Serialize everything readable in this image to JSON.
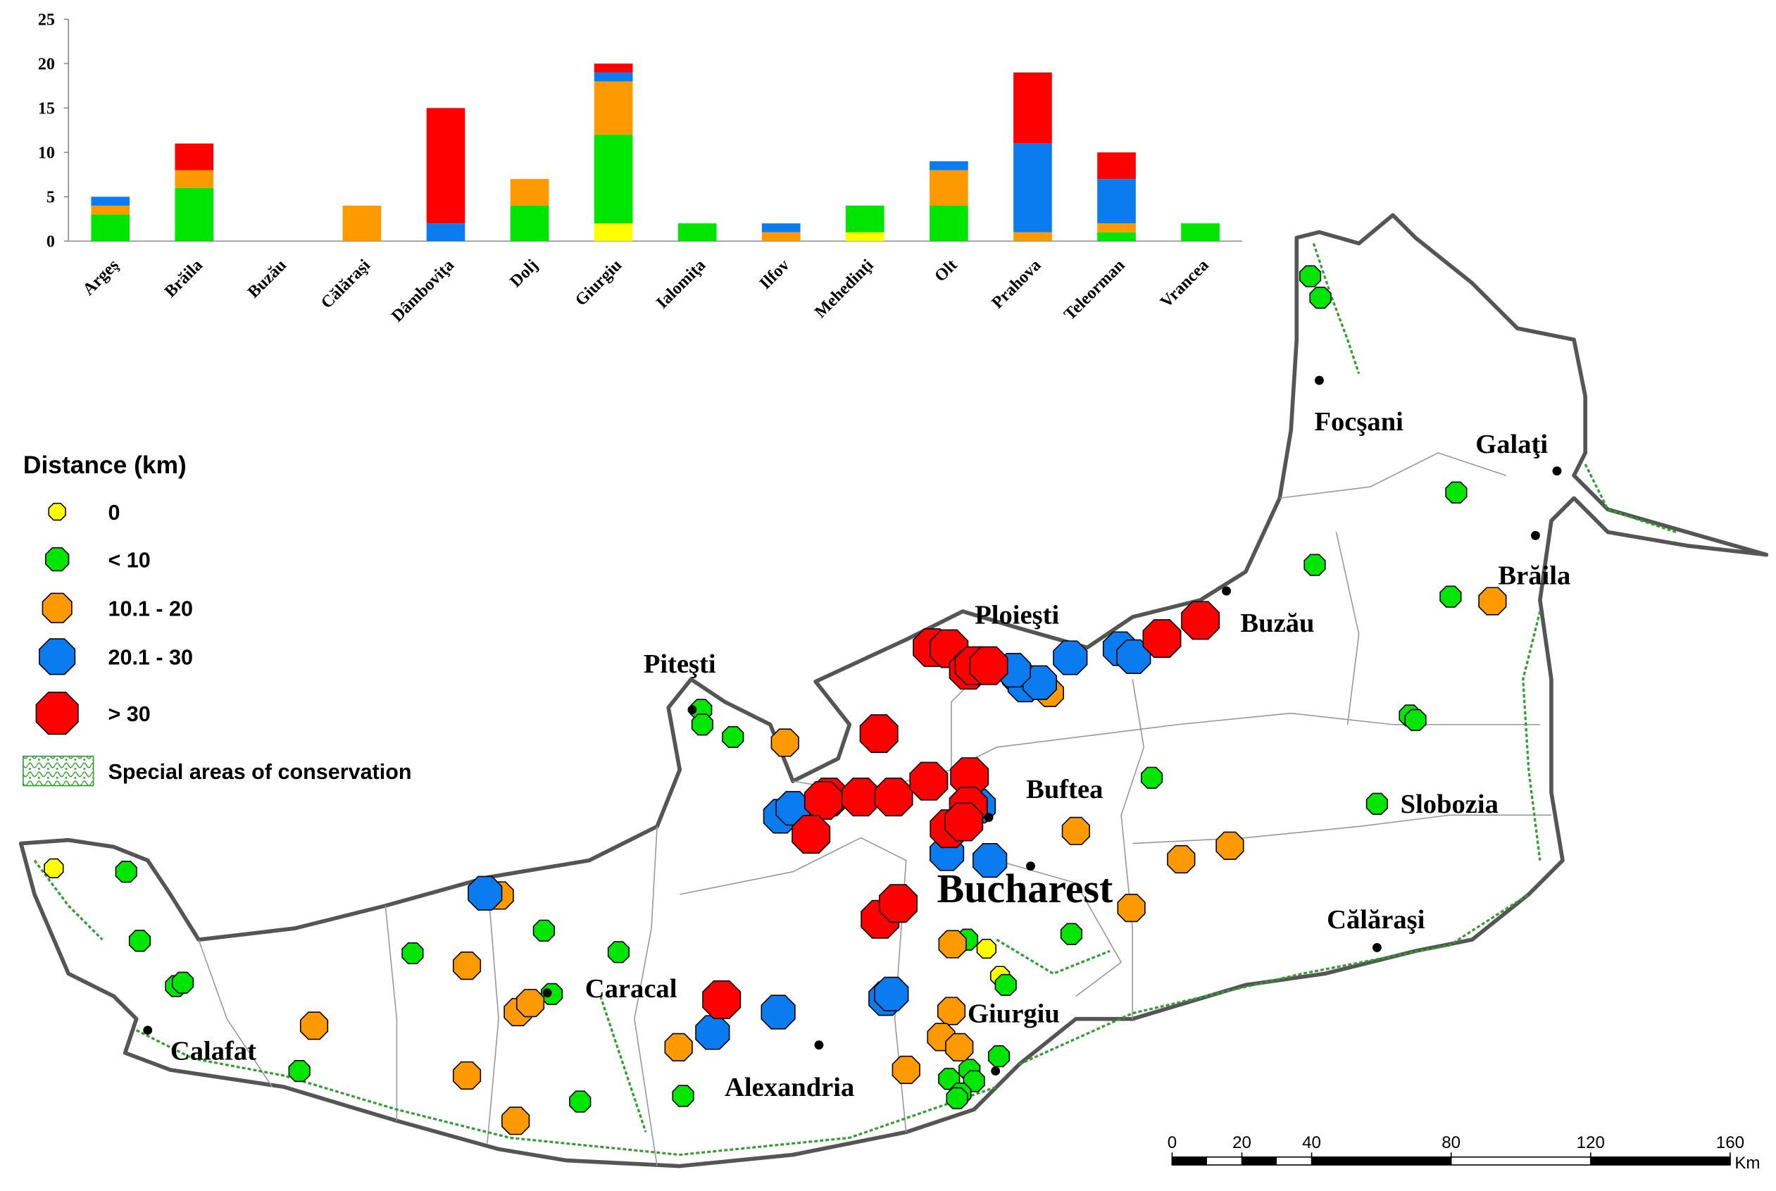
{
  "chart_data": {
    "type": "bar",
    "stacked": true,
    "categories": [
      "Argeş",
      "Brăila",
      "Buzău",
      "Călăraşi",
      "Dâmboviţa",
      "Dolj",
      "Giurgiu",
      "Ialomiţa",
      "Ilfov",
      "Mehedinţi",
      "Olt",
      "Prahova",
      "Teleorman",
      "Vrancea"
    ],
    "series": [
      {
        "name": "0",
        "color": "#ffff00",
        "values": [
          0,
          0,
          0,
          0,
          0,
          0,
          2,
          0,
          0,
          1,
          0,
          0,
          0,
          0
        ]
      },
      {
        "name": "< 10",
        "color": "#00e600",
        "values": [
          3,
          6,
          0,
          0,
          0,
          4,
          10,
          2,
          0,
          3,
          4,
          0,
          1,
          2
        ]
      },
      {
        "name": "10.1 - 20",
        "color": "#ff9900",
        "values": [
          1,
          2,
          0,
          4,
          0,
          3,
          6,
          0,
          1,
          0,
          4,
          1,
          1,
          0
        ]
      },
      {
        "name": "20.1 - 30",
        "color": "#0a7cf0",
        "values": [
          1,
          0,
          0,
          0,
          2,
          0,
          1,
          0,
          1,
          0,
          1,
          10,
          5,
          0
        ]
      },
      {
        "name": "> 30",
        "color": "#ff0000",
        "values": [
          0,
          3,
          0,
          0,
          13,
          0,
          1,
          0,
          0,
          0,
          0,
          8,
          3,
          0
        ]
      }
    ],
    "ylim": [
      0,
      25
    ],
    "yticks": [
      0,
      5,
      10,
      15,
      20,
      25
    ]
  },
  "legend": {
    "title": "Distance (km)",
    "conservation": "Special areas of conservation"
  },
  "cities": [
    "Focşani",
    "Galaţi",
    "Brăila",
    "Buzău",
    "Ploieşti",
    "Piteşti",
    "Buftea",
    "Slobozia",
    "Bucharest",
    "Călăraşi",
    "Caracal",
    "Giurgiu",
    "Calafat",
    "Alexandria"
  ],
  "scale_bar": {
    "ticks": [
      0,
      20,
      40,
      80,
      120,
      160
    ],
    "unit": "Km"
  }
}
